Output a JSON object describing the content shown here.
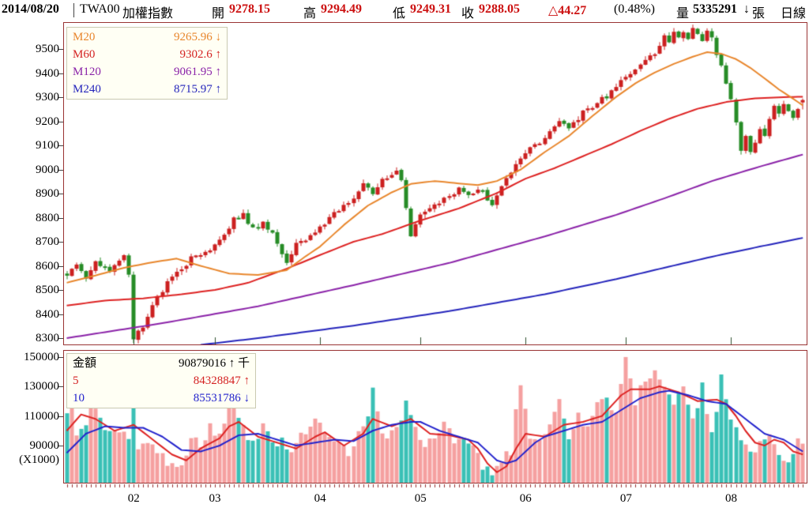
{
  "header": {
    "date": "2014/08/20",
    "symbol": "TWA00",
    "index_name": "加權指數",
    "open_label": "開",
    "open": "9278.15",
    "high_label": "高",
    "high": "9294.49",
    "low_label": "低",
    "low": "9249.31",
    "close_label": "收",
    "close": "9288.05",
    "change": "△44.27",
    "change_pct": "(0.48%)",
    "volume_label": "量",
    "volume": "5335291",
    "volume_arrow": "↓",
    "volume_unit": "張",
    "period": "日線"
  },
  "main_legend": [
    {
      "label": "M20",
      "value": "9265.96",
      "arrow": "↓",
      "color": "#e8862c"
    },
    {
      "label": "M60",
      "value": "9302.6",
      "arrow": "↑",
      "color": "#d42222"
    },
    {
      "label": "M120",
      "value": "9061.95",
      "arrow": "↑",
      "color": "#8a22a8"
    },
    {
      "label": "M240",
      "value": "8715.97",
      "arrow": "↑",
      "color": "#2424bb"
    }
  ],
  "volume_legend": [
    {
      "label": "金額",
      "value": "90879016",
      "arrow": "↑",
      "suffix": "千",
      "color": "#000000"
    },
    {
      "label": "5",
      "value": "84328847",
      "arrow": "↑",
      "suffix": "",
      "color": "#d42222"
    },
    {
      "label": "10",
      "value": "85531786",
      "arrow": "↓",
      "suffix": "",
      "color": "#2222cc"
    }
  ],
  "colors": {
    "up": "#cc2020",
    "down": "#268c26",
    "ma20": "#e8862c",
    "ma60": "#dd2222",
    "ma120": "#8a22a8",
    "ma240": "#2424bb",
    "vol_up": "#f5a0a0",
    "vol_down": "#3ac0b6",
    "vol_ma5": "#dd2222",
    "vol_ma10": "#2222cc",
    "border": "#993333",
    "month_tick": "#2f4f2f"
  },
  "chart_data": {
    "type": "candlestick+volume",
    "title": "TWA00 加權指數 daily chart, Jan–Aug 2014",
    "num_candles": 155,
    "price_axis": {
      "ticks": [
        9500,
        9400,
        9300,
        9200,
        9100,
        9000,
        8900,
        8800,
        8700,
        8600,
        8500,
        8400,
        8300
      ],
      "min_visible": 8270,
      "max_visible": 9610
    },
    "volume_axis": {
      "ticks": [
        150000,
        130000,
        110000,
        90000
      ],
      "unit": "(X1000)",
      "min_visible": 64000,
      "max_visible": 154500
    },
    "month_ticks": [
      {
        "label": "02",
        "index": 14
      },
      {
        "label": "03",
        "index": 31
      },
      {
        "label": "04",
        "index": 53
      },
      {
        "label": "05",
        "index": 74
      },
      {
        "label": "06",
        "index": 96
      },
      {
        "label": "07",
        "index": 117
      },
      {
        "label": "08",
        "index": 139
      }
    ],
    "last_candle": {
      "open": 9278.15,
      "high": 9294.49,
      "low": 9249.31,
      "close": 9288.05
    },
    "close_anchors": [
      [
        0,
        8565
      ],
      [
        2,
        8595
      ],
      [
        4,
        8550
      ],
      [
        6,
        8620
      ],
      [
        9,
        8585
      ],
      [
        12,
        8640
      ],
      [
        13,
        8555
      ],
      [
        14,
        8295
      ],
      [
        16,
        8350
      ],
      [
        18,
        8440
      ],
      [
        21,
        8530
      ],
      [
        24,
        8590
      ],
      [
        27,
        8650
      ],
      [
        30,
        8660
      ],
      [
        33,
        8730
      ],
      [
        35,
        8800
      ],
      [
        37,
        8810
      ],
      [
        39,
        8750
      ],
      [
        41,
        8775
      ],
      [
        43,
        8735
      ],
      [
        45,
        8645
      ],
      [
        46,
        8615
      ],
      [
        48,
        8685
      ],
      [
        50,
        8705
      ],
      [
        52,
        8740
      ],
      [
        54,
        8775
      ],
      [
        56,
        8815
      ],
      [
        58,
        8855
      ],
      [
        60,
        8885
      ],
      [
        62,
        8935
      ],
      [
        64,
        8905
      ],
      [
        66,
        8955
      ],
      [
        68,
        8985
      ],
      [
        69,
        9000
      ],
      [
        70,
        8960
      ],
      [
        71,
        8850
      ],
      [
        72,
        8725
      ],
      [
        74,
        8805
      ],
      [
        76,
        8845
      ],
      [
        78,
        8865
      ],
      [
        80,
        8895
      ],
      [
        82,
        8915
      ],
      [
        84,
        8890
      ],
      [
        86,
        8925
      ],
      [
        88,
        8880
      ],
      [
        89,
        8855
      ],
      [
        91,
        8925
      ],
      [
        93,
        8985
      ],
      [
        95,
        9045
      ],
      [
        97,
        9085
      ],
      [
        99,
        9115
      ],
      [
        101,
        9155
      ],
      [
        103,
        9190
      ],
      [
        105,
        9180
      ],
      [
        107,
        9215
      ],
      [
        109,
        9255
      ],
      [
        111,
        9275
      ],
      [
        113,
        9305
      ],
      [
        115,
        9335
      ],
      [
        117,
        9385
      ],
      [
        119,
        9425
      ],
      [
        121,
        9455
      ],
      [
        123,
        9485
      ],
      [
        125,
        9555
      ],
      [
        126,
        9525
      ],
      [
        127,
        9565
      ],
      [
        128,
        9545
      ],
      [
        129,
        9575
      ],
      [
        130,
        9550
      ],
      [
        131,
        9580
      ],
      [
        132,
        9560
      ],
      [
        133,
        9535
      ],
      [
        134,
        9565
      ],
      [
        135,
        9545
      ],
      [
        136,
        9475
      ],
      [
        137,
        9425
      ],
      [
        138,
        9355
      ],
      [
        139,
        9285
      ],
      [
        140,
        9185
      ],
      [
        141,
        9085
      ],
      [
        142,
        9140
      ],
      [
        143,
        9065
      ],
      [
        144,
        9115
      ],
      [
        145,
        9165
      ],
      [
        146,
        9145
      ],
      [
        147,
        9215
      ],
      [
        148,
        9255
      ],
      [
        149,
        9235
      ],
      [
        150,
        9275
      ],
      [
        151,
        9245
      ],
      [
        152,
        9215
      ],
      [
        153,
        9244
      ],
      [
        154,
        9288
      ]
    ],
    "ma20_anchors": [
      [
        0,
        8530
      ],
      [
        6,
        8560
      ],
      [
        12,
        8592
      ],
      [
        18,
        8615
      ],
      [
        23,
        8630
      ],
      [
        28,
        8600
      ],
      [
        34,
        8568
      ],
      [
        40,
        8562
      ],
      [
        46,
        8582
      ],
      [
        50,
        8640
      ],
      [
        53,
        8680
      ],
      [
        58,
        8770
      ],
      [
        63,
        8850
      ],
      [
        68,
        8905
      ],
      [
        72,
        8940
      ],
      [
        77,
        8952
      ],
      [
        82,
        8942
      ],
      [
        86,
        8935
      ],
      [
        90,
        8952
      ],
      [
        95,
        9000
      ],
      [
        100,
        9072
      ],
      [
        105,
        9138
      ],
      [
        110,
        9222
      ],
      [
        115,
        9302
      ],
      [
        119,
        9358
      ],
      [
        123,
        9402
      ],
      [
        127,
        9438
      ],
      [
        131,
        9468
      ],
      [
        134,
        9487
      ],
      [
        137,
        9480
      ],
      [
        140,
        9458
      ],
      [
        143,
        9422
      ],
      [
        146,
        9378
      ],
      [
        149,
        9332
      ],
      [
        152,
        9293
      ],
      [
        154,
        9266
      ]
    ],
    "ma60_anchors": [
      [
        0,
        8435
      ],
      [
        8,
        8456
      ],
      [
        16,
        8465
      ],
      [
        24,
        8482
      ],
      [
        31,
        8500
      ],
      [
        38,
        8530
      ],
      [
        46,
        8588
      ],
      [
        53,
        8645
      ],
      [
        60,
        8700
      ],
      [
        66,
        8732
      ],
      [
        74,
        8788
      ],
      [
        82,
        8838
      ],
      [
        90,
        8902
      ],
      [
        96,
        8962
      ],
      [
        102,
        9005
      ],
      [
        108,
        9055
      ],
      [
        114,
        9105
      ],
      [
        120,
        9160
      ],
      [
        126,
        9210
      ],
      [
        132,
        9252
      ],
      [
        138,
        9280
      ],
      [
        144,
        9295
      ],
      [
        150,
        9300
      ],
      [
        154,
        9302
      ]
    ],
    "ma120_anchors": [
      [
        0,
        8300
      ],
      [
        20,
        8362
      ],
      [
        40,
        8432
      ],
      [
        60,
        8520
      ],
      [
        80,
        8612
      ],
      [
        100,
        8722
      ],
      [
        115,
        8812
      ],
      [
        125,
        8880
      ],
      [
        135,
        8952
      ],
      [
        145,
        9012
      ],
      [
        154,
        9062
      ]
    ],
    "ma240_anchors": [
      [
        28,
        8272
      ],
      [
        40,
        8300
      ],
      [
        60,
        8352
      ],
      [
        80,
        8412
      ],
      [
        100,
        8482
      ],
      [
        115,
        8545
      ],
      [
        125,
        8592
      ],
      [
        135,
        8638
      ],
      [
        145,
        8680
      ],
      [
        154,
        8716
      ]
    ],
    "volume_anchors": [
      [
        0,
        116
      ],
      [
        1,
        118
      ],
      [
        2,
        96
      ],
      [
        4,
        101
      ],
      [
        5,
        117
      ],
      [
        7,
        108
      ],
      [
        9,
        96
      ],
      [
        11,
        103
      ],
      [
        13,
        92
      ],
      [
        14,
        118
      ],
      [
        15,
        86
      ],
      [
        17,
        93
      ],
      [
        19,
        86
      ],
      [
        21,
        79
      ],
      [
        22,
        81
      ],
      [
        24,
        74
      ],
      [
        26,
        96
      ],
      [
        28,
        91
      ],
      [
        30,
        103
      ],
      [
        32,
        97
      ],
      [
        34,
        116
      ],
      [
        35,
        117
      ],
      [
        37,
        100
      ],
      [
        39,
        93
      ],
      [
        41,
        103
      ],
      [
        43,
        89
      ],
      [
        45,
        95
      ],
      [
        47,
        87
      ],
      [
        49,
        96
      ],
      [
        51,
        101
      ],
      [
        53,
        109
      ],
      [
        55,
        95
      ],
      [
        57,
        93
      ],
      [
        59,
        85
      ],
      [
        61,
        97
      ],
      [
        63,
        106
      ],
      [
        64,
        134
      ],
      [
        66,
        96
      ],
      [
        68,
        101
      ],
      [
        70,
        108
      ],
      [
        71,
        116
      ],
      [
        73,
        99
      ],
      [
        75,
        91
      ],
      [
        77,
        96
      ],
      [
        79,
        107
      ],
      [
        81,
        94
      ],
      [
        83,
        96
      ],
      [
        85,
        93
      ],
      [
        87,
        76
      ],
      [
        88,
        73
      ],
      [
        89,
        69
      ],
      [
        91,
        81
      ],
      [
        93,
        86
      ],
      [
        95,
        135
      ],
      [
        97,
        91
      ],
      [
        99,
        96
      ],
      [
        101,
        101
      ],
      [
        103,
        119
      ],
      [
        105,
        96
      ],
      [
        107,
        111
      ],
      [
        109,
        101
      ],
      [
        111,
        116
      ],
      [
        113,
        126
      ],
      [
        115,
        111
      ],
      [
        117,
        153
      ],
      [
        119,
        121
      ],
      [
        121,
        131
      ],
      [
        123,
        141
      ],
      [
        125,
        134
      ],
      [
        127,
        121
      ],
      [
        129,
        129
      ],
      [
        131,
        111
      ],
      [
        133,
        128
      ],
      [
        135,
        101
      ],
      [
        137,
        133
      ],
      [
        139,
        106
      ],
      [
        141,
        96
      ],
      [
        143,
        86
      ],
      [
        145,
        91
      ],
      [
        147,
        98
      ],
      [
        149,
        81
      ],
      [
        151,
        79
      ],
      [
        153,
        92
      ],
      [
        154,
        91
      ]
    ],
    "vol_ma5_anchors": [
      [
        0,
        100
      ],
      [
        3,
        111
      ],
      [
        6,
        108
      ],
      [
        10,
        100
      ],
      [
        14,
        104
      ],
      [
        18,
        94
      ],
      [
        22,
        84
      ],
      [
        25,
        80
      ],
      [
        28,
        88
      ],
      [
        32,
        95
      ],
      [
        34,
        103
      ],
      [
        36,
        106
      ],
      [
        40,
        96
      ],
      [
        44,
        92
      ],
      [
        48,
        88
      ],
      [
        52,
        96
      ],
      [
        54,
        99
      ],
      [
        58,
        90
      ],
      [
        62,
        98
      ],
      [
        64,
        108
      ],
      [
        68,
        103
      ],
      [
        72,
        108
      ],
      [
        76,
        98
      ],
      [
        80,
        97
      ],
      [
        84,
        94
      ],
      [
        86,
        88
      ],
      [
        88,
        78
      ],
      [
        90,
        72
      ],
      [
        92,
        76
      ],
      [
        94,
        88
      ],
      [
        96,
        98
      ],
      [
        100,
        96
      ],
      [
        104,
        104
      ],
      [
        108,
        106
      ],
      [
        112,
        110
      ],
      [
        116,
        124
      ],
      [
        118,
        128
      ],
      [
        122,
        128
      ],
      [
        124,
        130
      ],
      [
        128,
        126
      ],
      [
        132,
        120
      ],
      [
        136,
        121
      ],
      [
        138,
        118
      ],
      [
        140,
        110
      ],
      [
        142,
        100
      ],
      [
        144,
        92
      ],
      [
        146,
        90
      ],
      [
        148,
        94
      ],
      [
        150,
        92
      ],
      [
        152,
        86
      ],
      [
        154,
        84
      ]
    ],
    "vol_ma10_anchors": [
      [
        0,
        85
      ],
      [
        4,
        98
      ],
      [
        8,
        103
      ],
      [
        12,
        102
      ],
      [
        16,
        102
      ],
      [
        20,
        96
      ],
      [
        24,
        87
      ],
      [
        28,
        86
      ],
      [
        32,
        90
      ],
      [
        36,
        97
      ],
      [
        40,
        98
      ],
      [
        44,
        94
      ],
      [
        48,
        90
      ],
      [
        52,
        92
      ],
      [
        56,
        94
      ],
      [
        60,
        93
      ],
      [
        64,
        100
      ],
      [
        68,
        104
      ],
      [
        72,
        106
      ],
      [
        74,
        106
      ],
      [
        78,
        100
      ],
      [
        82,
        96
      ],
      [
        86,
        92
      ],
      [
        88,
        86
      ],
      [
        90,
        80
      ],
      [
        92,
        78
      ],
      [
        94,
        80
      ],
      [
        96,
        86
      ],
      [
        98,
        92
      ],
      [
        100,
        96
      ],
      [
        104,
        100
      ],
      [
        108,
        104
      ],
      [
        112,
        106
      ],
      [
        116,
        114
      ],
      [
        120,
        122
      ],
      [
        124,
        126
      ],
      [
        126,
        127
      ],
      [
        130,
        124
      ],
      [
        134,
        120
      ],
      [
        138,
        118
      ],
      [
        142,
        108
      ],
      [
        146,
        98
      ],
      [
        150,
        94
      ],
      [
        154,
        86
      ]
    ]
  }
}
